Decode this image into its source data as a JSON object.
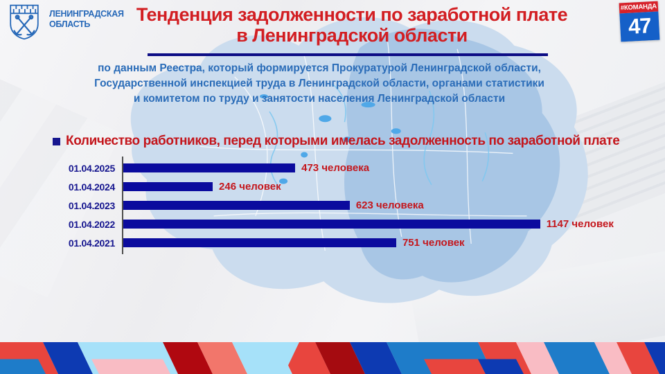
{
  "theme": {
    "title_red": "#D21E22",
    "accent_red": "#C4161C",
    "bar_navy": "#0B0B9E",
    "date_navy": "#16168F",
    "subtitle_blue": "#2A6CB8",
    "underline_navy": "#0D0D85",
    "badge_red": "#D6222A",
    "badge_blue": "#1560C8",
    "logo_blue": "#2668B8",
    "map_light": "#CBDCEE",
    "map_dark": "#A5C4E4",
    "lake_blue": "#4FA8E8"
  },
  "header": {
    "logo": {
      "emblem_icon": "leningrad-oblast-coat-of-arms",
      "region_line1": "ЛЕНИНГРАДСКАЯ",
      "region_line2": "ОБЛАСТЬ"
    },
    "title_line1": "Тенденция задолженности по заработной плате",
    "title_line2": "в Ленинградской области",
    "badge": {
      "hashtag": "#КОМАНДА",
      "number": "47"
    }
  },
  "subtitle": {
    "lines": [
      "по данным Реестра, который формируется Прокуратурой Ленинградской области,",
      "Государственной инспекцией труда в Ленинградской области, органами статистики",
      "и комитетом по труду и занятости населения Ленинградской области"
    ]
  },
  "section": {
    "heading": "Количество работников, перед которыми имелась задолженность по заработной плате"
  },
  "chart_data": {
    "type": "bar",
    "orientation": "horizontal",
    "title": "Количество работников, перед которыми имелась задолженность по заработной плате",
    "categories": [
      "01.04.2025",
      "01.04.2024",
      "01.04.2023",
      "01.04.2022",
      "01.04.2021"
    ],
    "values": [
      473,
      246,
      623,
      1147,
      751
    ],
    "value_labels": [
      "473 человека",
      "246 человек",
      "623 человека",
      "1147 человек",
      "751 человек"
    ],
    "xmax": 1220,
    "grid": false,
    "legend": false,
    "bar_color": "#0B0B9E",
    "label_color": "#C4161C"
  }
}
